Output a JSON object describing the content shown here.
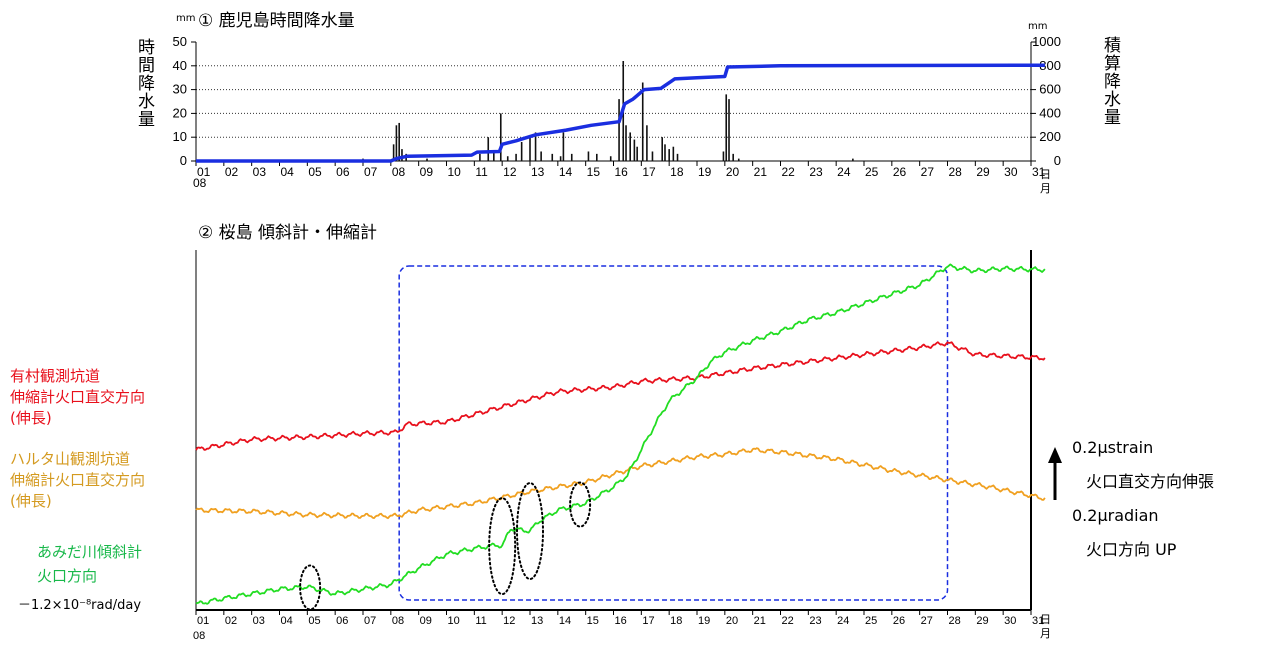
{
  "rain_panel": {
    "title": "① 鹿児島時間降水量",
    "left_unit": "mm",
    "right_unit": "mm",
    "left_label": "時間降水量",
    "right_label": "積算降水量",
    "year_prefix": "08",
    "day_unit_top": "日",
    "day_unit_bottom": "月"
  },
  "tilt_panel": {
    "title": "② 桜島 傾斜計・伸縮計",
    "year_prefix": "08",
    "day_unit_top": "日",
    "day_unit_bottom": "月"
  },
  "legend": {
    "arimura": [
      "有村観測坑道",
      "伸縮計火口直交方向",
      "(伸長)"
    ],
    "harutayama": [
      "ハルタ山観測坑道",
      "伸縮計火口直交方向",
      "(伸長)"
    ],
    "amida": [
      "あみだ川傾斜計",
      "火口方向"
    ],
    "amida_rate": "－1.2×10⁻⁸rad/day"
  },
  "scale_bar": {
    "strain_value": "0.2μstrain",
    "strain_label": "火口直交方向伸張",
    "radian_value": "0.2μradian",
    "radian_label": "火口方向 UP"
  },
  "colors": {
    "arimura": "#e8101c",
    "harutayama": "#f0a020",
    "amida": "#22dd22",
    "cumulative": "#1a2ee0",
    "highlight": "#1a2ee0"
  },
  "chart_data": [
    {
      "type": "bar",
      "title": "① 鹿児島時間降水量",
      "x_ticks": [
        "01",
        "02",
        "03",
        "04",
        "05",
        "06",
        "07",
        "08",
        "09",
        "10",
        "11",
        "12",
        "13",
        "14",
        "15",
        "16",
        "17",
        "18",
        "19",
        "20",
        "21",
        "22",
        "23",
        "24",
        "25",
        "26",
        "27",
        "28",
        "29",
        "30",
        "31"
      ],
      "ylabel": "時間降水量",
      "ylim": [
        0,
        50
      ],
      "y_ticks": [
        0,
        10,
        20,
        30,
        40,
        50
      ],
      "y2label": "積算降水量",
      "y2lim": [
        0,
        1000
      ],
      "y2_ticks": [
        0,
        200,
        400,
        600,
        800,
        1000
      ],
      "grid": "horizontal dotted",
      "hourly_bars": [
        [
          7.0,
          1
        ],
        [
          8.1,
          7
        ],
        [
          8.2,
          15
        ],
        [
          8.3,
          16
        ],
        [
          8.4,
          5
        ],
        [
          8.55,
          3
        ],
        [
          9.3,
          1
        ],
        [
          11.2,
          3
        ],
        [
          11.5,
          10
        ],
        [
          11.7,
          4
        ],
        [
          11.95,
          20
        ],
        [
          12.2,
          2
        ],
        [
          12.5,
          3
        ],
        [
          12.7,
          8
        ],
        [
          13.0,
          10
        ],
        [
          13.2,
          12
        ],
        [
          13.4,
          4
        ],
        [
          13.8,
          3
        ],
        [
          14.1,
          2
        ],
        [
          14.2,
          12
        ],
        [
          14.5,
          3
        ],
        [
          15.1,
          4
        ],
        [
          15.4,
          3
        ],
        [
          15.9,
          2
        ],
        [
          16.2,
          26
        ],
        [
          16.35,
          42
        ],
        [
          16.45,
          15
        ],
        [
          16.6,
          12
        ],
        [
          16.75,
          9
        ],
        [
          16.85,
          6
        ],
        [
          17.05,
          33
        ],
        [
          17.2,
          15
        ],
        [
          17.4,
          4
        ],
        [
          17.75,
          10
        ],
        [
          17.85,
          7
        ],
        [
          18.0,
          5
        ],
        [
          18.15,
          6
        ],
        [
          18.3,
          3
        ],
        [
          19.95,
          4
        ],
        [
          20.05,
          28
        ],
        [
          20.15,
          26
        ],
        [
          20.3,
          3
        ],
        [
          20.5,
          1
        ],
        [
          24.6,
          1
        ]
      ],
      "cumulative": [
        [
          1,
          0
        ],
        [
          8.0,
          0
        ],
        [
          8.2,
          20
        ],
        [
          8.6,
          40
        ],
        [
          10.9,
          50
        ],
        [
          11.1,
          75
        ],
        [
          11.9,
          80
        ],
        [
          12.0,
          140
        ],
        [
          12.5,
          170
        ],
        [
          13.2,
          220
        ],
        [
          14.3,
          260
        ],
        [
          15.2,
          300
        ],
        [
          16.2,
          330
        ],
        [
          16.4,
          480
        ],
        [
          16.7,
          520
        ],
        [
          17.1,
          600
        ],
        [
          17.7,
          610
        ],
        [
          18.2,
          690
        ],
        [
          19.0,
          700
        ],
        [
          20.0,
          710
        ],
        [
          20.1,
          790
        ],
        [
          22.0,
          800
        ],
        [
          31.5,
          805
        ]
      ]
    },
    {
      "type": "line",
      "title": "② 桜島 傾斜計・伸縮計",
      "x_ticks": [
        "01",
        "02",
        "03",
        "04",
        "05",
        "06",
        "07",
        "08",
        "09",
        "10",
        "11",
        "12",
        "13",
        "14",
        "15",
        "16",
        "17",
        "18",
        "19",
        "20",
        "21",
        "22",
        "23",
        "24",
        "25",
        "26",
        "27",
        "28",
        "29",
        "30",
        "31"
      ],
      "ylabel": "",
      "series": [
        {
          "name": "有村観測坑道 伸縮計火口直交方向 (伸長)",
          "color": "#e8101c",
          "points": [
            [
              1,
              0.88
            ],
            [
              3,
              0.97
            ],
            [
              5,
              0.99
            ],
            [
              7,
              1.02
            ],
            [
              8.2,
              1.03
            ],
            [
              8.6,
              1.1
            ],
            [
              10,
              1.12
            ],
            [
              12,
              1.25
            ],
            [
              14,
              1.38
            ],
            [
              16,
              1.42
            ],
            [
              17,
              1.47
            ],
            [
              19,
              1.5
            ],
            [
              21,
              1.58
            ],
            [
              23,
              1.64
            ],
            [
              25,
              1.7
            ],
            [
              27,
              1.76
            ],
            [
              28,
              1.8
            ],
            [
              29,
              1.7
            ],
            [
              31.5,
              1.67
            ]
          ]
        },
        {
          "name": "ハルタ山観測坑道 伸縮計火口直交方向 (伸長)",
          "color": "#f0a020",
          "points": [
            [
              1,
              0.36
            ],
            [
              3,
              0.35
            ],
            [
              5,
              0.32
            ],
            [
              7,
              0.31
            ],
            [
              8.2,
              0.31
            ],
            [
              9,
              0.36
            ],
            [
              11,
              0.42
            ],
            [
              13,
              0.52
            ],
            [
              15,
              0.6
            ],
            [
              16,
              0.67
            ],
            [
              17,
              0.74
            ],
            [
              18,
              0.78
            ],
            [
              19,
              0.82
            ],
            [
              20,
              0.84
            ],
            [
              21,
              0.88
            ],
            [
              22,
              0.86
            ],
            [
              24,
              0.8
            ],
            [
              26,
              0.7
            ],
            [
              28,
              0.62
            ],
            [
              29.5,
              0.56
            ],
            [
              31.5,
              0.46
            ]
          ]
        },
        {
          "name": "あみだ川傾斜計 火口方向",
          "color": "#22dd22",
          "points": [
            [
              1,
              -0.45
            ],
            [
              2,
              -0.4
            ],
            [
              3,
              -0.36
            ],
            [
              4,
              -0.32
            ],
            [
              5,
              -0.3
            ],
            [
              6,
              -0.36
            ],
            [
              7,
              -0.32
            ],
            [
              8,
              -0.28
            ],
            [
              8.2,
              -0.25
            ],
            [
              9,
              -0.14
            ],
            [
              10,
              -0.02
            ],
            [
              11,
              0.03
            ],
            [
              11.8,
              0.06
            ],
            [
              12,
              0.05
            ],
            [
              12.3,
              0.2
            ],
            [
              13,
              0.18
            ],
            [
              13.3,
              0.26
            ],
            [
              14,
              0.36
            ],
            [
              15,
              0.42
            ],
            [
              16,
              0.56
            ],
            [
              16.5,
              0.66
            ],
            [
              17,
              0.88
            ],
            [
              17.5,
              1.1
            ],
            [
              18,
              1.3
            ],
            [
              19,
              1.5
            ],
            [
              19.5,
              1.64
            ],
            [
              20,
              1.72
            ],
            [
              21,
              1.82
            ],
            [
              22,
              1.9
            ],
            [
              23,
              2.0
            ],
            [
              24,
              2.06
            ],
            [
              25,
              2.14
            ],
            [
              26,
              2.22
            ],
            [
              27,
              2.3
            ],
            [
              28,
              2.46
            ],
            [
              29,
              2.42
            ],
            [
              30,
              2.44
            ],
            [
              31.5,
              2.43
            ]
          ]
        }
      ],
      "y_range": [
        -0.5,
        2.6
      ],
      "annotations": {
        "highlight_box_days": [
          8.3,
          28
        ],
        "dotted_ellipses_days": [
          5.1,
          12.0,
          13.0,
          14.8
        ]
      }
    }
  ]
}
